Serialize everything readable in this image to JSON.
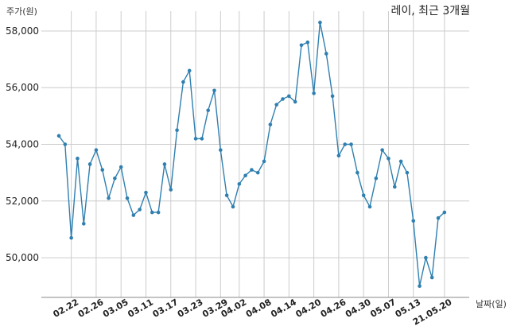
{
  "chart_data": {
    "type": "line",
    "title": "레이, 최근 3개월",
    "ylabel": "주가(원)",
    "xlabel": "날짜(일)",
    "ylim": [
      48600,
      58700
    ],
    "y_ticks": [
      50000,
      52000,
      54000,
      56000,
      58000
    ],
    "y_tick_labels": [
      "50,000",
      "52,000",
      "54,000",
      "56,000",
      "58,000"
    ],
    "x_tick_labels": [
      "02.22",
      "02.26",
      "03.05",
      "03.11",
      "03.17",
      "03.23",
      "03.29",
      "04.02",
      "04.08",
      "04.14",
      "04.20",
      "04.26",
      "04.30",
      "05.07",
      "05.13",
      "21.05.20"
    ],
    "x_tick_indices": [
      2,
      6,
      10,
      14,
      18,
      22,
      26,
      29,
      33,
      37,
      41,
      45,
      49,
      53,
      57,
      62
    ],
    "grid": true,
    "series": [
      {
        "color": "#2f7fb0",
        "values": [
          54300,
          54000,
          50700,
          53500,
          51200,
          53300,
          53800,
          53100,
          52100,
          52800,
          53200,
          52100,
          51500,
          51700,
          52300,
          51600,
          51600,
          53300,
          52400,
          54500,
          56200,
          56600,
          54200,
          54200,
          55200,
          55900,
          53800,
          52200,
          51800,
          52600,
          52900,
          53100,
          53000,
          53400,
          54700,
          55400,
          55600,
          55700,
          55500,
          57500,
          57600,
          55800,
          58300,
          57200,
          55700,
          53600,
          54000,
          54000,
          53000,
          52200,
          51800,
          52800,
          53800,
          53500,
          52500,
          53400,
          53000,
          51300,
          49000,
          50000,
          49300,
          51400,
          51600
        ]
      }
    ]
  }
}
